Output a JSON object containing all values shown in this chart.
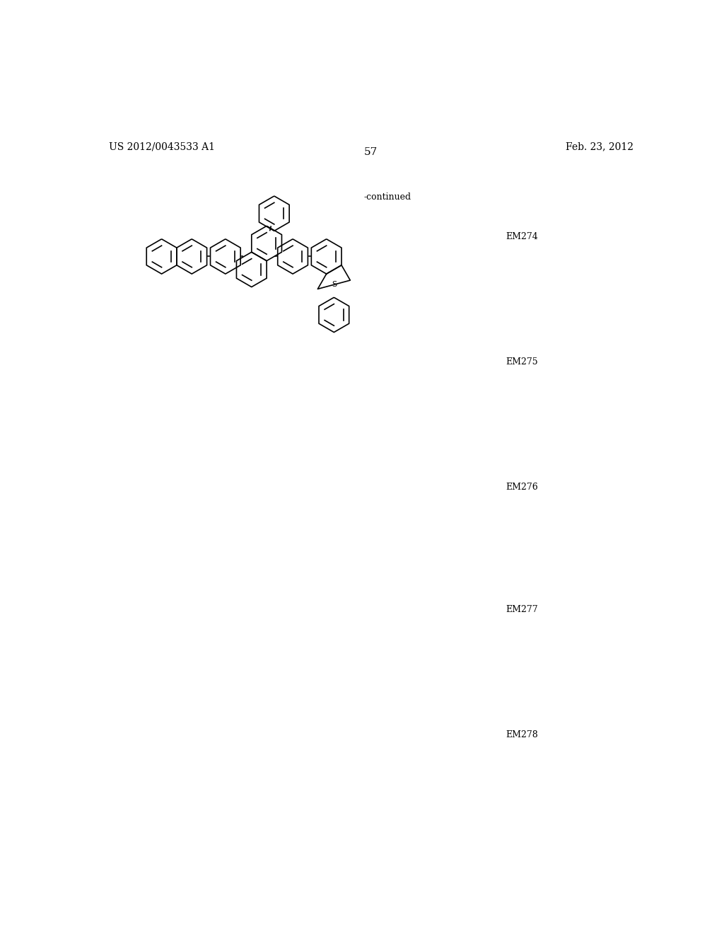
{
  "title_left": "US 2012/0043533 A1",
  "title_right": "Feb. 23, 2012",
  "page_number": "57",
  "continued_text": "-continued",
  "labels": [
    "EM274",
    "EM275",
    "EM276",
    "EM277",
    "EM278"
  ],
  "background_color": "#ffffff",
  "line_color": "#000000",
  "font_size_header": 10,
  "font_size_label": 9,
  "font_size_page": 11
}
